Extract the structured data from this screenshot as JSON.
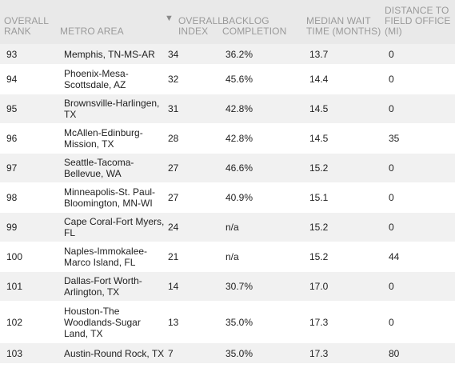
{
  "header": {
    "rank": [
      "OVERALL",
      "RANK"
    ],
    "metro": [
      "METRO AREA"
    ],
    "index": [
      "OVERALL",
      "INDEX"
    ],
    "backlog": [
      "BACKLOG",
      "COMPLETION"
    ],
    "wait": [
      "MEDIAN WAIT",
      "TIME (MONTHS)"
    ],
    "distance": [
      "DISTANCE TO",
      "FIELD OFFICE",
      "(MI)"
    ],
    "sort_icon": "triangle-down-icon"
  },
  "rows": [
    {
      "rank": "93",
      "metro": "Memphis, TN-MS-AR",
      "index": "34",
      "backlog": "36.2%",
      "wait": "13.7",
      "distance": "0"
    },
    {
      "rank": "94",
      "metro": "Phoenix-Mesa-Scottsdale, AZ",
      "index": "32",
      "backlog": "45.6%",
      "wait": "14.4",
      "distance": "0"
    },
    {
      "rank": "95",
      "metro": "Brownsville-Harlingen, TX",
      "index": "31",
      "backlog": "42.8%",
      "wait": "14.5",
      "distance": "0"
    },
    {
      "rank": "96",
      "metro": "McAllen-Edinburg-Mission, TX",
      "index": "28",
      "backlog": "42.8%",
      "wait": "14.5",
      "distance": "35"
    },
    {
      "rank": "97",
      "metro": "Seattle-Tacoma-Bellevue, WA",
      "index": "27",
      "backlog": "46.6%",
      "wait": "15.2",
      "distance": "0"
    },
    {
      "rank": "98",
      "metro": "Minneapolis-St. Paul-Bloomington, MN-WI",
      "index": "27",
      "backlog": "40.9%",
      "wait": "15.1",
      "distance": "0"
    },
    {
      "rank": "99",
      "metro": "Cape Coral-Fort Myers, FL",
      "index": "24",
      "backlog": "n/a",
      "wait": "15.2",
      "distance": "0"
    },
    {
      "rank": "100",
      "metro": "Naples-Immokalee-Marco Island, FL",
      "index": "21",
      "backlog": "n/a",
      "wait": "15.2",
      "distance": "44"
    },
    {
      "rank": "101",
      "metro": "Dallas-Fort Worth-Arlington, TX",
      "index": "14",
      "backlog": "30.7%",
      "wait": "17.0",
      "distance": "0"
    },
    {
      "rank": "102",
      "metro": "Houston-The Woodlands-Sugar Land, TX",
      "index": "13",
      "backlog": "35.0%",
      "wait": "17.3",
      "distance": "0"
    },
    {
      "rank": "103",
      "metro": "Austin-Round Rock, TX",
      "index": "7",
      "backlog": "35.0%",
      "wait": "17.3",
      "distance": "80"
    }
  ]
}
